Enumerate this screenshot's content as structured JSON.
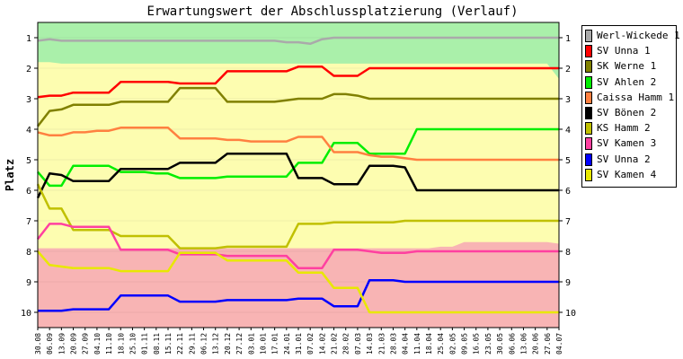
{
  "chart_data": {
    "type": "line",
    "title": "Erwartungswert der Abschlussplatzierung (Verlauf)",
    "ylabel": "Platz",
    "xlabel": "",
    "ylim": [
      1,
      10
    ],
    "y_inverted": true,
    "y_ticks": [
      "1",
      "2",
      "3",
      "4",
      "5",
      "6",
      "7",
      "8",
      "9",
      "10"
    ],
    "x": [
      "30.08",
      "06.09",
      "13.09",
      "20.09",
      "27.09",
      "04.10",
      "11.10",
      "18.10",
      "25.10",
      "01.11",
      "08.11",
      "15.11",
      "22.11",
      "29.11",
      "06.12",
      "13.12",
      "20.12",
      "27.12",
      "03.01",
      "10.01",
      "17.01",
      "24.01",
      "31.01",
      "07.02",
      "14.02",
      "21.02",
      "28.02",
      "07.03",
      "14.03",
      "21.03",
      "28.03",
      "04.04",
      "11.04",
      "18.04",
      "25.04",
      "02.05",
      "09.05",
      "16.05",
      "23.05",
      "30.05",
      "06.06",
      "13.06",
      "20.06",
      "27.06",
      "04.07"
    ],
    "background_bands": [
      {
        "zone": "promotion",
        "color": "#aaf0aa",
        "boundary": [
          1.8,
          1.8,
          1.85,
          1.85,
          1.85,
          1.85,
          1.85,
          1.85,
          1.85,
          1.85,
          1.85,
          1.85,
          1.85,
          1.85,
          1.85,
          1.85,
          1.85,
          1.85,
          1.85,
          1.85,
          1.85,
          1.85,
          1.85,
          1.85,
          1.85,
          1.85,
          1.85,
          1.85,
          1.85,
          1.85,
          1.85,
          1.85,
          1.85,
          1.85,
          1.85,
          1.85,
          1.85,
          1.85,
          1.85,
          1.85,
          1.85,
          1.85,
          1.85,
          1.85,
          2.35
        ]
      },
      {
        "zone": "midfield",
        "color": "#fdfdb0"
      },
      {
        "zone": "relegation",
        "color": "#f8b4b4",
        "boundary": [
          7.9,
          7.9,
          7.9,
          7.9,
          7.9,
          7.9,
          7.9,
          7.9,
          7.9,
          7.9,
          7.9,
          7.9,
          7.9,
          7.9,
          7.9,
          7.9,
          7.9,
          7.9,
          7.9,
          7.9,
          7.9,
          7.9,
          7.9,
          7.9,
          7.9,
          7.9,
          7.9,
          7.9,
          7.9,
          7.9,
          7.9,
          7.9,
          7.9,
          7.9,
          7.85,
          7.85,
          7.7,
          7.7,
          7.7,
          7.7,
          7.7,
          7.7,
          7.7,
          7.7,
          7.75
        ]
      }
    ],
    "series": [
      {
        "name": "Werl-Wickede 1",
        "color": "#aaaaaa",
        "values": [
          1.1,
          1.05,
          1.1,
          1.1,
          1.1,
          1.1,
          1.1,
          1.1,
          1.1,
          1.1,
          1.1,
          1.1,
          1.1,
          1.1,
          1.1,
          1.1,
          1.1,
          1.1,
          1.1,
          1.1,
          1.1,
          1.15,
          1.15,
          1.2,
          1.05,
          1.0,
          1.0,
          1.0,
          1.0,
          1.0,
          1.0,
          1.0,
          1.0,
          1.0,
          1.0,
          1.0,
          1.0,
          1.0,
          1.0,
          1.0,
          1.0,
          1.0,
          1.0,
          1.0,
          1.0
        ]
      },
      {
        "name": "SV Unna 1",
        "color": "#ff0000",
        "values": [
          2.95,
          2.9,
          2.9,
          2.8,
          2.8,
          2.8,
          2.8,
          2.45,
          2.45,
          2.45,
          2.45,
          2.45,
          2.5,
          2.5,
          2.5,
          2.5,
          2.1,
          2.1,
          2.1,
          2.1,
          2.1,
          2.1,
          1.95,
          1.95,
          1.95,
          2.25,
          2.25,
          2.25,
          2.0,
          2.0,
          2.0,
          2.0,
          2.0,
          2.0,
          2.0,
          2.0,
          2.0,
          2.0,
          2.0,
          2.0,
          2.0,
          2.0,
          2.0,
          2.0,
          2.0
        ]
      },
      {
        "name": "SK Werne 1",
        "color": "#808000",
        "values": [
          3.9,
          3.4,
          3.35,
          3.2,
          3.2,
          3.2,
          3.2,
          3.1,
          3.1,
          3.1,
          3.1,
          3.1,
          2.65,
          2.65,
          2.65,
          2.65,
          3.1,
          3.1,
          3.1,
          3.1,
          3.1,
          3.05,
          3.0,
          3.0,
          3.0,
          2.85,
          2.85,
          2.9,
          3.0,
          3.0,
          3.0,
          3.0,
          3.0,
          3.0,
          3.0,
          3.0,
          3.0,
          3.0,
          3.0,
          3.0,
          3.0,
          3.0,
          3.0,
          3.0,
          3.0
        ]
      },
      {
        "name": "SV Ahlen 2",
        "color": "#00ee00",
        "values": [
          5.4,
          5.85,
          5.85,
          5.2,
          5.2,
          5.2,
          5.2,
          5.4,
          5.4,
          5.4,
          5.45,
          5.45,
          5.6,
          5.6,
          5.6,
          5.6,
          5.55,
          5.55,
          5.55,
          5.55,
          5.55,
          5.55,
          5.1,
          5.1,
          5.1,
          4.45,
          4.45,
          4.45,
          4.8,
          4.8,
          4.8,
          4.8,
          4.0,
          4.0,
          4.0,
          4.0,
          4.0,
          4.0,
          4.0,
          4.0,
          4.0,
          4.0,
          4.0,
          4.0,
          4.0
        ]
      },
      {
        "name": "Caissa Hamm 1",
        "color": "#ff8040",
        "values": [
          4.1,
          4.2,
          4.2,
          4.1,
          4.1,
          4.05,
          4.05,
          3.95,
          3.95,
          3.95,
          3.95,
          3.95,
          4.3,
          4.3,
          4.3,
          4.3,
          4.35,
          4.35,
          4.4,
          4.4,
          4.4,
          4.4,
          4.25,
          4.25,
          4.25,
          4.75,
          4.75,
          4.75,
          4.85,
          4.9,
          4.9,
          4.95,
          5.0,
          5.0,
          5.0,
          5.0,
          5.0,
          5.0,
          5.0,
          5.0,
          5.0,
          5.0,
          5.0,
          5.0,
          5.0
        ]
      },
      {
        "name": "SV Bönen 2",
        "color": "#000000",
        "values": [
          6.25,
          5.45,
          5.5,
          5.7,
          5.7,
          5.7,
          5.7,
          5.3,
          5.3,
          5.3,
          5.3,
          5.3,
          5.1,
          5.1,
          5.1,
          5.1,
          4.8,
          4.8,
          4.8,
          4.8,
          4.8,
          4.8,
          5.6,
          5.6,
          5.6,
          5.8,
          5.8,
          5.8,
          5.2,
          5.2,
          5.2,
          5.25,
          6.0,
          6.0,
          6.0,
          6.0,
          6.0,
          6.0,
          6.0,
          6.0,
          6.0,
          6.0,
          6.0,
          6.0,
          6.0
        ]
      },
      {
        "name": "KS Hamm 2",
        "color": "#c0c000",
        "values": [
          5.8,
          6.6,
          6.6,
          7.3,
          7.3,
          7.3,
          7.3,
          7.5,
          7.5,
          7.5,
          7.5,
          7.5,
          7.9,
          7.9,
          7.9,
          7.9,
          7.85,
          7.85,
          7.85,
          7.85,
          7.85,
          7.85,
          7.1,
          7.1,
          7.1,
          7.05,
          7.05,
          7.05,
          7.05,
          7.05,
          7.05,
          7.0,
          7.0,
          7.0,
          7.0,
          7.0,
          7.0,
          7.0,
          7.0,
          7.0,
          7.0,
          7.0,
          7.0,
          7.0,
          7.0
        ]
      },
      {
        "name": "SV Kamen 3",
        "color": "#ff40a0",
        "values": [
          7.6,
          7.1,
          7.1,
          7.2,
          7.2,
          7.2,
          7.2,
          7.95,
          7.95,
          7.95,
          7.95,
          7.95,
          8.1,
          8.1,
          8.1,
          8.1,
          8.15,
          8.15,
          8.15,
          8.15,
          8.15,
          8.15,
          8.55,
          8.55,
          8.55,
          7.95,
          7.95,
          7.95,
          8.0,
          8.05,
          8.05,
          8.05,
          8.0,
          8.0,
          8.0,
          8.0,
          8.0,
          8.0,
          8.0,
          8.0,
          8.0,
          8.0,
          8.0,
          8.0,
          8.0
        ]
      },
      {
        "name": "SV Unna 2",
        "color": "#0000ff",
        "values": [
          9.95,
          9.95,
          9.95,
          9.9,
          9.9,
          9.9,
          9.9,
          9.45,
          9.45,
          9.45,
          9.45,
          9.45,
          9.65,
          9.65,
          9.65,
          9.65,
          9.6,
          9.6,
          9.6,
          9.6,
          9.6,
          9.6,
          9.55,
          9.55,
          9.55,
          9.8,
          9.8,
          9.8,
          8.95,
          8.95,
          8.95,
          9.0,
          9.0,
          9.0,
          9.0,
          9.0,
          9.0,
          9.0,
          9.0,
          9.0,
          9.0,
          9.0,
          9.0,
          9.0,
          9.0
        ]
      },
      {
        "name": "SV Kamen 4",
        "color": "#e8e800",
        "values": [
          8.0,
          8.45,
          8.5,
          8.55,
          8.55,
          8.55,
          8.55,
          8.65,
          8.65,
          8.65,
          8.65,
          8.65,
          8.05,
          8.05,
          8.05,
          8.05,
          8.3,
          8.3,
          8.3,
          8.3,
          8.3,
          8.3,
          8.7,
          8.7,
          8.7,
          9.2,
          9.2,
          9.2,
          10.0,
          10.0,
          10.0,
          10.0,
          10.0,
          10.0,
          10.0,
          10.0,
          10.0,
          10.0,
          10.0,
          10.0,
          10.0,
          10.0,
          10.0,
          10.0,
          10.0
        ]
      }
    ]
  }
}
